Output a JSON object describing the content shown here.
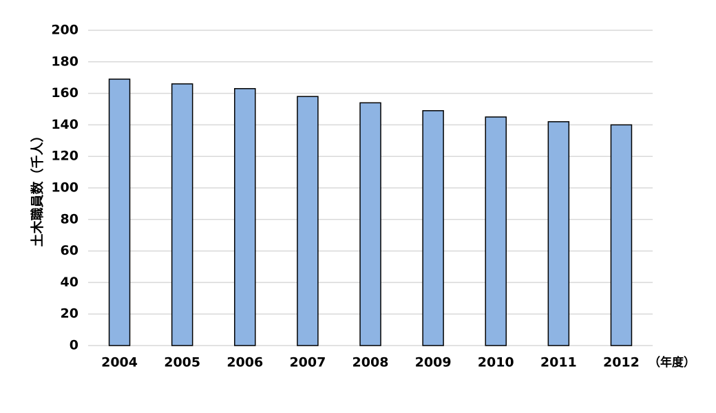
{
  "chart_data": {
    "type": "bar",
    "y_label": "土木職員数（千人）",
    "x_unit_label": "（年度）",
    "categories": [
      "2004",
      "2005",
      "2006",
      "2007",
      "2008",
      "2009",
      "2010",
      "2011",
      "2012"
    ],
    "values": [
      169,
      166,
      163,
      158,
      154,
      149,
      145,
      142,
      140
    ],
    "color": "#8eb4e3",
    "ylim": [
      0,
      200
    ],
    "yticks": [
      0,
      20,
      40,
      60,
      80,
      100,
      120,
      140,
      160,
      180,
      200
    ],
    "grid": true
  }
}
